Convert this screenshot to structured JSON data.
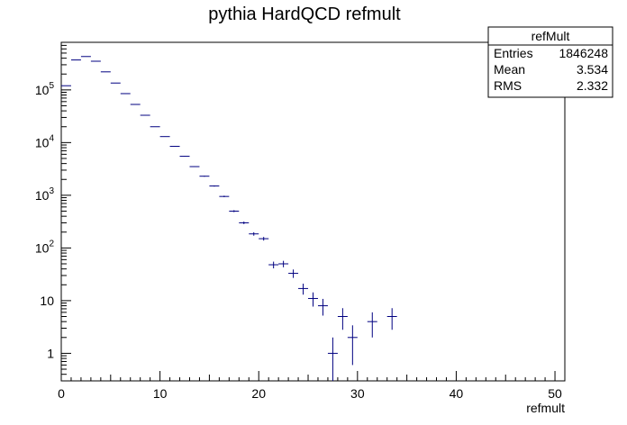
{
  "chart_data": {
    "type": "scatter",
    "title": "pythia HardQCD refmult",
    "xlabel": "refmult",
    "ylabel": "",
    "xlim": [
      0,
      51
    ],
    "ylim": [
      0.3,
      800000
    ],
    "y_log": true,
    "x_ticks": [
      "0",
      "10",
      "20",
      "30",
      "40",
      "50"
    ],
    "y_ticks": [
      "1",
      "10",
      "10^2",
      "10^3",
      "10^4",
      "10^5"
    ],
    "series": [
      {
        "color": "#000080",
        "bin_width": 1,
        "points": [
          {
            "x": 0.5,
            "y": 120000,
            "err": 350
          },
          {
            "x": 1.5,
            "y": 370000,
            "err": 610
          },
          {
            "x": 2.5,
            "y": 430000,
            "err": 660
          },
          {
            "x": 3.5,
            "y": 350000,
            "err": 590
          },
          {
            "x": 4.5,
            "y": 220000,
            "err": 470
          },
          {
            "x": 5.5,
            "y": 135000,
            "err": 370
          },
          {
            "x": 6.5,
            "y": 85000,
            "err": 290
          },
          {
            "x": 7.5,
            "y": 53000,
            "err": 230
          },
          {
            "x": 8.5,
            "y": 33000,
            "err": 180
          },
          {
            "x": 9.5,
            "y": 20000,
            "err": 140
          },
          {
            "x": 10.5,
            "y": 13000,
            "err": 114
          },
          {
            "x": 11.5,
            "y": 8500,
            "err": 92
          },
          {
            "x": 12.5,
            "y": 5500,
            "err": 74
          },
          {
            "x": 13.5,
            "y": 3500,
            "err": 59
          },
          {
            "x": 14.5,
            "y": 2300,
            "err": 48
          },
          {
            "x": 15.5,
            "y": 1500,
            "err": 39
          },
          {
            "x": 16.5,
            "y": 950,
            "err": 31
          },
          {
            "x": 17.5,
            "y": 500,
            "err": 22
          },
          {
            "x": 18.5,
            "y": 300,
            "err": 17
          },
          {
            "x": 19.5,
            "y": 185,
            "err": 14
          },
          {
            "x": 20.5,
            "y": 150,
            "err": 12
          },
          {
            "x": 21.5,
            "y": 48,
            "err": 7
          },
          {
            "x": 22.5,
            "y": 50,
            "err": 7
          },
          {
            "x": 23.5,
            "y": 33,
            "err": 6
          },
          {
            "x": 24.5,
            "y": 17,
            "err": 4
          },
          {
            "x": 25.5,
            "y": 11,
            "err": 3.3
          },
          {
            "x": 26.5,
            "y": 8,
            "err": 2.8
          },
          {
            "x": 27.5,
            "y": 1,
            "err": 1
          },
          {
            "x": 28.5,
            "y": 5,
            "err": 2.2
          },
          {
            "x": 29.5,
            "y": 2,
            "err": 1.4
          },
          {
            "x": 31.5,
            "y": 4,
            "err": 2
          },
          {
            "x": 33.5,
            "y": 5,
            "err": 2.2
          }
        ]
      }
    ],
    "stats": {
      "title": "refMult",
      "rows": [
        {
          "label": "Entries",
          "value": "1846248"
        },
        {
          "label": "Mean",
          "value": "3.534"
        },
        {
          "label": "RMS",
          "value": "2.332"
        }
      ]
    }
  }
}
